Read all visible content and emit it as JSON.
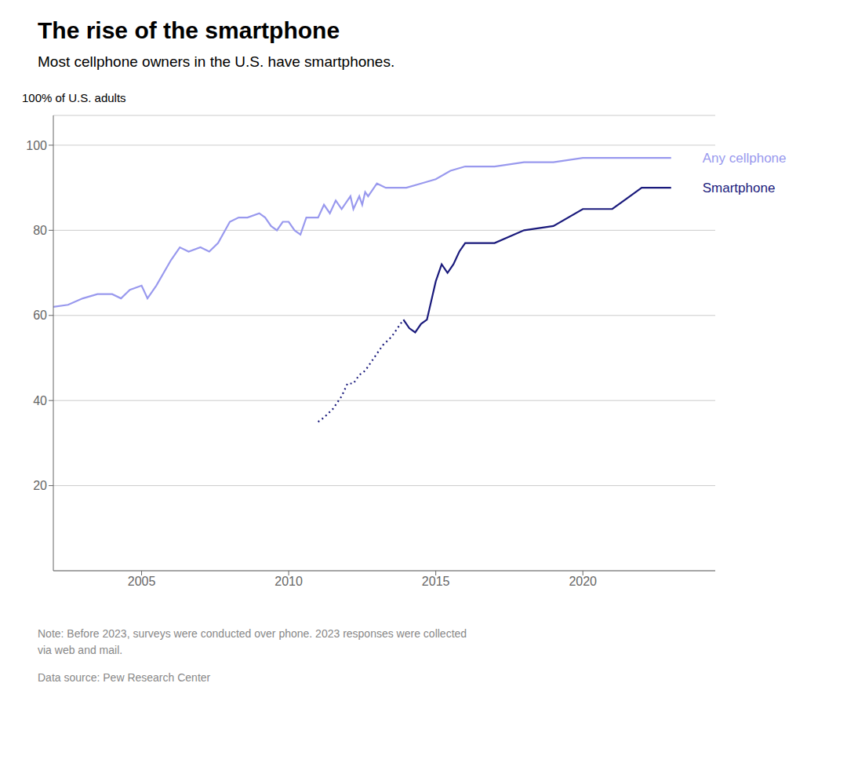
{
  "chart_data": {
    "type": "line",
    "title": "The rise of the smartphone",
    "subtitle": "Most cellphone owners in the U.S. have smartphones.",
    "ylabel": "100% of U.S. adults",
    "note": "Note: Before 2023, surveys were conducted over phone. 2023 responses were collected\nvia web and mail.",
    "source": "Data source: Pew Research Center",
    "xlim": [
      2002,
      2024.5
    ],
    "xticks": [
      2005,
      2010,
      2015,
      2020
    ],
    "ylim": [
      0,
      107
    ],
    "yticks": [
      20,
      40,
      60,
      80,
      100
    ],
    "grid": true,
    "series": [
      {
        "color": "#9999ee",
        "line_style": "solid",
        "x": [
          2002,
          2002.5,
          2003,
          2003.5,
          2004,
          2004.3,
          2004.6,
          2005,
          2005.2,
          2005.5,
          2006,
          2006.3,
          2006.6,
          2007,
          2007.3,
          2007.6,
          2008,
          2008.3,
          2008.6,
          2009,
          2009.2,
          2009.4,
          2009.6,
          2009.8,
          2010,
          2010.2,
          2010.4,
          2010.6,
          2010.8,
          2011,
          2011.2,
          2011.4,
          2011.6,
          2011.8,
          2012,
          2012.1,
          2012.2,
          2012.4,
          2012.5,
          2012.6,
          2012.7,
          2012.8,
          2013,
          2013.3,
          2013.6,
          2014,
          2014.5,
          2015,
          2015.5,
          2016,
          2016.5,
          2017,
          2018,
          2019,
          2020,
          2021,
          2022,
          2023
        ],
        "values": [
          62,
          62.5,
          64,
          65,
          65,
          64,
          66,
          67,
          64,
          67,
          73,
          76,
          75,
          76,
          75,
          77,
          82,
          83,
          83,
          84,
          83,
          81,
          80,
          82,
          82,
          80,
          79,
          83,
          83,
          83,
          86,
          84,
          87,
          85,
          87,
          88,
          85,
          88,
          86,
          89,
          88,
          89,
          91,
          90,
          90,
          90,
          91,
          92,
          94,
          95,
          95,
          95,
          96,
          96,
          97,
          97,
          97,
          97
        ]
      },
      {
        "color": "#1a1a7c",
        "line_style": "dotted",
        "x": [
          2011.0,
          2011.2,
          2011.5,
          2011.8,
          2012.0,
          2012.2,
          2012.4,
          2012.6,
          2012.8,
          2013.0,
          2013.2,
          2013.5,
          2013.7,
          2013.9
        ],
        "values": [
          35,
          36,
          38,
          41,
          44,
          44,
          46,
          47,
          49,
          51,
          53,
          55,
          57,
          59
        ]
      },
      {
        "color": "#1a1a7c",
        "line_style": "solid",
        "x": [
          2013.9,
          2014.1,
          2014.3,
          2014.5,
          2014.7,
          2015.0,
          2015.2,
          2015.4,
          2015.6,
          2015.8,
          2016.0,
          2016.5,
          2017.0,
          2018.0,
          2019.0,
          2020.0,
          2021.0,
          2022.0,
          2023.0
        ],
        "values": [
          59,
          57,
          56,
          58,
          59,
          68,
          72,
          70,
          72,
          75,
          77,
          77,
          77,
          80,
          81,
          85,
          85,
          90,
          90
        ]
      }
    ],
    "annotations": [
      {
        "text": "Any cellphone",
        "x": 2023,
        "y": 97,
        "color": "#9999ee"
      },
      {
        "text": "Smartphone",
        "x": 2023,
        "y": 90,
        "color": "#1a1a7c"
      }
    ]
  }
}
